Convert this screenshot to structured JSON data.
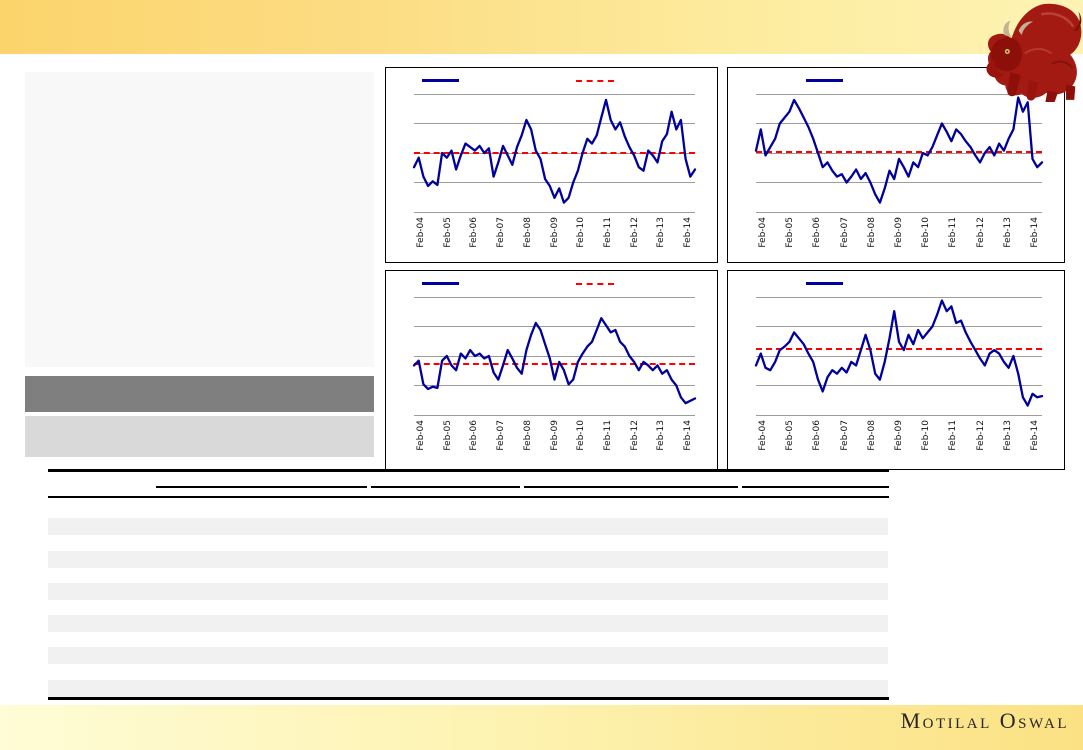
{
  "page": {
    "footer_brand": "Motilal Oswal"
  },
  "icons": {
    "top_right_logo": "bull-statue-icon"
  },
  "colors": {
    "top_band_left": "#fbd46c",
    "top_band_right": "#fef3b4",
    "bottom_band_left": "#fffcd6",
    "bottom_band_right": "#fbe183",
    "series_line": "#00009c",
    "average_line": "#fe0000",
    "gridline": "#9c9c9c",
    "left_panel_fill": "#f8f8f8",
    "header_bar_fill": "#7f7f7f",
    "subheader_fill": "#d9d9d9",
    "table_stripe": "#f1f1f1",
    "bull_red": "#9e1812"
  },
  "table": {
    "column_group_underlines": 4,
    "striped_row_count": 6
  },
  "chart_data": [
    {
      "type": "line",
      "position": "top-left",
      "x_tick_labels": [
        "Feb-04",
        "Feb-05",
        "Feb-06",
        "Feb-07",
        "Feb-08",
        "Feb-09",
        "Feb-10",
        "Feb-11",
        "Feb-12",
        "Feb-13",
        "Feb-14"
      ],
      "y_tick_labels_visible": false,
      "gridline_count": 5,
      "average_line_pct_from_bottom": 50,
      "legend": [
        {
          "style": "solid",
          "color": "#00009c",
          "x": 36
        },
        {
          "style": "dashed",
          "color": "#fe0000",
          "x": 190
        }
      ],
      "series": [
        {
          "name": "series",
          "color": "#00009c",
          "values_pct": [
            38,
            46,
            30,
            22,
            26,
            23,
            50,
            46,
            52,
            36,
            48,
            58,
            55,
            52,
            56,
            50,
            54,
            30,
            42,
            56,
            48,
            40,
            55,
            65,
            78,
            70,
            52,
            45,
            28,
            22,
            12,
            20,
            8,
            12,
            25,
            35,
            50,
            62,
            58,
            65,
            80,
            95,
            78,
            70,
            76,
            64,
            55,
            48,
            38,
            35,
            52,
            48,
            42,
            60,
            66,
            85,
            70,
            78,
            45,
            30,
            36
          ]
        }
      ]
    },
    {
      "type": "line",
      "position": "top-right",
      "x_tick_labels": [
        "Feb-04",
        "Feb-05",
        "Feb-06",
        "Feb-07",
        "Feb-08",
        "Feb-09",
        "Feb-10",
        "Feb-11",
        "Feb-12",
        "Feb-13",
        "Feb-14"
      ],
      "y_tick_labels_visible": false,
      "gridline_count": 5,
      "average_line_pct_from_bottom": 51,
      "legend": [
        {
          "style": "solid",
          "color": "#00009c",
          "x": 78
        }
      ],
      "series": [
        {
          "name": "series",
          "color": "#00009c",
          "values_pct": [
            52,
            70,
            48,
            55,
            62,
            75,
            80,
            85,
            95,
            88,
            80,
            72,
            62,
            50,
            38,
            42,
            35,
            30,
            32,
            25,
            30,
            36,
            28,
            33,
            25,
            15,
            8,
            20,
            35,
            28,
            45,
            38,
            30,
            42,
            38,
            50,
            48,
            55,
            65,
            75,
            68,
            60,
            70,
            66,
            60,
            55,
            48,
            42,
            50,
            55,
            48,
            58,
            52,
            62,
            70,
            97,
            85,
            93,
            45,
            38,
            42
          ]
        }
      ]
    },
    {
      "type": "line",
      "position": "bottom-left",
      "x_tick_labels": [
        "Feb-04",
        "Feb-05",
        "Feb-06",
        "Feb-07",
        "Feb-08",
        "Feb-09",
        "Feb-10",
        "Feb-11",
        "Feb-12",
        "Feb-13",
        "Feb-14"
      ],
      "y_tick_labels_visible": false,
      "gridline_count": 5,
      "average_line_pct_from_bottom": 43,
      "legend": [
        {
          "style": "solid",
          "color": "#00009c",
          "x": 36
        },
        {
          "style": "dashed",
          "color": "#fe0000",
          "x": 190
        }
      ],
      "series": [
        {
          "name": "series",
          "color": "#00009c",
          "values_pct": [
            42,
            46,
            26,
            22,
            24,
            23,
            46,
            50,
            42,
            38,
            52,
            48,
            55,
            50,
            52,
            48,
            50,
            36,
            30,
            42,
            55,
            48,
            40,
            35,
            55,
            68,
            78,
            72,
            60,
            48,
            30,
            45,
            38,
            26,
            30,
            45,
            52,
            58,
            62,
            72,
            82,
            76,
            70,
            72,
            62,
            58,
            50,
            45,
            38,
            45,
            42,
            38,
            42,
            35,
            38,
            30,
            25,
            15,
            10,
            12,
            14
          ]
        }
      ]
    },
    {
      "type": "line",
      "position": "bottom-right",
      "x_tick_labels": [
        "Feb-04",
        "Feb-05",
        "Feb-06",
        "Feb-07",
        "Feb-08",
        "Feb-09",
        "Feb-10",
        "Feb-11",
        "Feb-12",
        "Feb-13",
        "Feb-14"
      ],
      "y_tick_labels_visible": false,
      "gridline_count": 5,
      "average_line_pct_from_bottom": 56,
      "legend": [
        {
          "style": "solid",
          "color": "#00009c",
          "x": 78
        }
      ],
      "series": [
        {
          "name": "series",
          "color": "#00009c",
          "values_pct": [
            42,
            52,
            40,
            38,
            45,
            55,
            58,
            62,
            70,
            65,
            60,
            52,
            45,
            30,
            20,
            32,
            38,
            35,
            40,
            36,
            45,
            42,
            55,
            68,
            55,
            35,
            30,
            45,
            65,
            88,
            62,
            55,
            68,
            60,
            72,
            65,
            70,
            75,
            85,
            97,
            88,
            92,
            78,
            80,
            70,
            62,
            55,
            48,
            42,
            52,
            55,
            52,
            45,
            40,
            50,
            35,
            15,
            8,
            18,
            15,
            16
          ]
        }
      ]
    }
  ]
}
